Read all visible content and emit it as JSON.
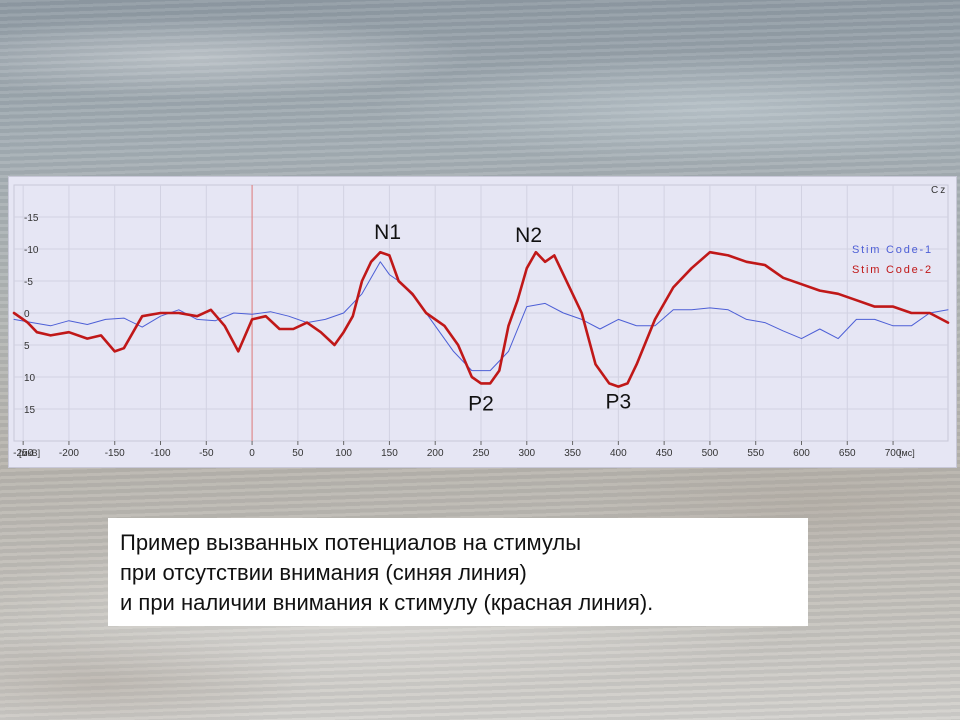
{
  "chart_data": {
    "type": "line",
    "channel_label": "Cz",
    "x_unit": "[мс]",
    "y_unit": "[мкВ]",
    "x_ticks": [
      "-250",
      "-200",
      "-150",
      "-100",
      "-50",
      "0",
      "50",
      "100",
      "150",
      "200",
      "250",
      "300",
      "350",
      "400",
      "450",
      "500",
      "550",
      "600",
      "650",
      "700"
    ],
    "y_ticks": [
      "-15",
      "-10",
      "-5",
      "0",
      "5",
      "10",
      "15"
    ],
    "xlim": [
      -260,
      760
    ],
    "ylim": [
      -20,
      20
    ],
    "y_inverted": true,
    "grid": true,
    "stimulus_line_x": 0,
    "legend_position": "top-right",
    "series": [
      {
        "name": "Stim Code-1",
        "color": "#4d5fd6",
        "x": [
          -260,
          -240,
          -220,
          -200,
          -180,
          -160,
          -140,
          -120,
          -100,
          -80,
          -60,
          -40,
          -20,
          0,
          20,
          40,
          60,
          80,
          100,
          120,
          140,
          150,
          160,
          180,
          200,
          220,
          240,
          260,
          280,
          300,
          320,
          340,
          360,
          380,
          400,
          420,
          440,
          460,
          480,
          500,
          520,
          540,
          560,
          580,
          600,
          620,
          640,
          660,
          680,
          700,
          720,
          740,
          760
        ],
        "y": [
          1,
          1.5,
          2,
          1.2,
          1.8,
          1,
          0.8,
          2.2,
          0.5,
          -0.5,
          1,
          1.2,
          0,
          0.2,
          -0.2,
          0.5,
          1.5,
          1,
          0,
          -3,
          -8,
          -6,
          -5,
          -2,
          2,
          6,
          9,
          9,
          6,
          -1,
          -1.5,
          0,
          1,
          2.5,
          1,
          2,
          2,
          -0.5,
          -0.5,
          -0.8,
          -0.5,
          1,
          1.5,
          2.8,
          4,
          2.5,
          4,
          1,
          1,
          2,
          2,
          0,
          -0.5
        ]
      },
      {
        "name": "Stim Code-2",
        "color": "#c01818",
        "x": [
          -260,
          -245,
          -235,
          -220,
          -200,
          -180,
          -165,
          -150,
          -140,
          -120,
          -100,
          -80,
          -60,
          -45,
          -30,
          -15,
          0,
          15,
          30,
          45,
          60,
          75,
          90,
          100,
          110,
          120,
          130,
          140,
          150,
          160,
          175,
          190,
          210,
          225,
          240,
          250,
          260,
          270,
          280,
          290,
          300,
          310,
          320,
          330,
          340,
          360,
          375,
          390,
          400,
          410,
          420,
          440,
          460,
          480,
          500,
          520,
          540,
          560,
          580,
          600,
          620,
          640,
          660,
          680,
          700,
          720,
          740,
          760
        ],
        "y": [
          0,
          1.5,
          3,
          3.5,
          3,
          4,
          3.5,
          6,
          5.5,
          0.5,
          0,
          0,
          0.5,
          -0.5,
          2,
          6,
          1,
          0.5,
          2.5,
          2.5,
          1.5,
          3,
          5,
          3,
          0.5,
          -5,
          -8,
          -9.5,
          -9,
          -5,
          -3,
          0,
          2,
          5,
          10,
          11,
          11,
          9,
          2,
          -2,
          -7,
          -9.5,
          -8,
          -9,
          -6,
          0,
          8,
          11,
          11.5,
          11,
          8,
          1,
          -4,
          -7,
          -9.5,
          -9,
          -8,
          -7.5,
          -5.5,
          -4.5,
          -3.5,
          -3,
          -2,
          -1,
          -1,
          0,
          0,
          1.5
        ]
      }
    ],
    "annotations": [
      {
        "text": "N1",
        "x": 148,
        "y": -11.6
      },
      {
        "text": "N2",
        "x": 302,
        "y": -11.1
      },
      {
        "text": "P2",
        "x": 250,
        "y": 15.2
      },
      {
        "text": "P3",
        "x": 400,
        "y": 14.9
      }
    ]
  },
  "caption": {
    "line1": "Пример вызванных потенциалов на стимулы",
    "line2": "при отсутствии внимания (синяя линия)",
    "line3": "и при наличии внимания к стимулу (красная линия)."
  }
}
